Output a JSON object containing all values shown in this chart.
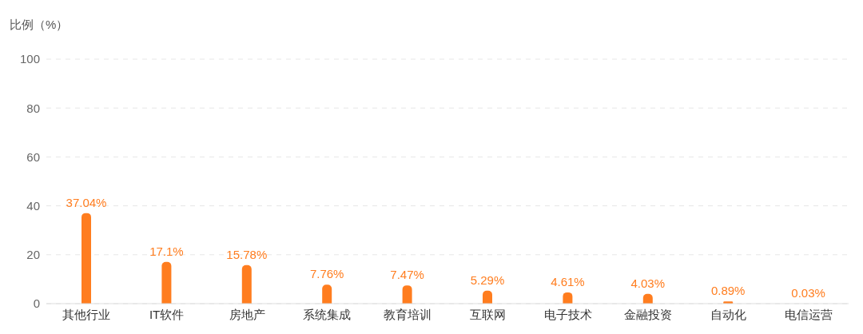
{
  "chart_data": {
    "type": "bar",
    "ylabel": "比例（%）",
    "categories": [
      "其他行业",
      "IT软件",
      "房地产",
      "系统集成",
      "教育培训",
      "互联网",
      "电子技术",
      "金融投资",
      "自动化",
      "电信运营"
    ],
    "values": [
      37.04,
      17.1,
      15.78,
      7.76,
      7.47,
      5.29,
      4.61,
      4.03,
      0.89,
      0.03
    ],
    "value_labels": [
      "37.04%",
      "17.1%",
      "15.78%",
      "7.76%",
      "7.47%",
      "5.29%",
      "4.61%",
      "4.03%",
      "0.89%",
      "0.03%"
    ],
    "color": "#ff7d1f",
    "ylim": [
      0,
      100
    ],
    "yticks": [
      0,
      20,
      40,
      60,
      80,
      100
    ],
    "grid": "y"
  }
}
